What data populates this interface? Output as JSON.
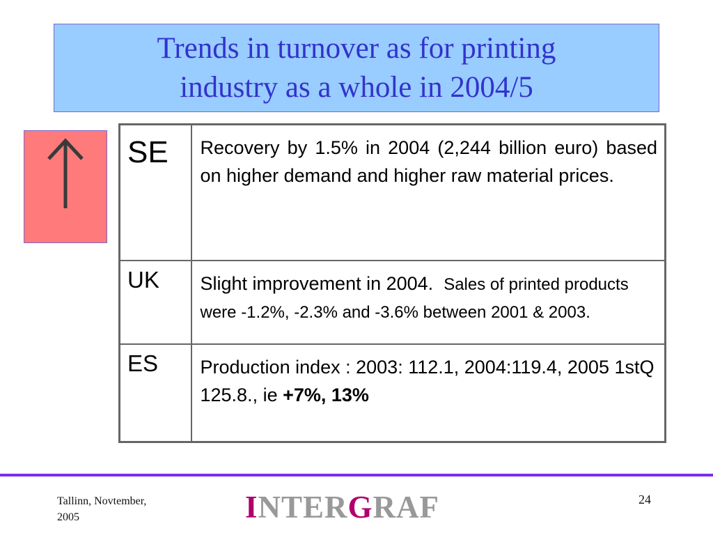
{
  "slide": {
    "title_line1": "Trends in turnover as for printing",
    "title_line2": "industry as a whole in 2004/5",
    "indicator": {
      "icon": "up-arrow-icon",
      "color": "#ff7a7a"
    },
    "table": {
      "rows": [
        {
          "code": "SE",
          "text": "Recovery by 1.5% in 2004 (2,244 billion euro) based on higher demand and higher raw material prices."
        },
        {
          "code": "UK",
          "text_main": "Slight improvement in 2004.",
          "text_detail": "Sales of printed products were -1.2%, -2.3% and -3.6% between 2001 & 2003."
        },
        {
          "code": "ES",
          "text_main": "Production index : 2003: 112.1, 2004:119.4, 2005 1stQ 125.8., ie",
          "text_bold": "+7%, 13%"
        }
      ]
    }
  },
  "footer": {
    "location_line1": "Tallinn, Novtember,",
    "location_line2": "2005",
    "logo": {
      "p1": "I",
      "p2": "NTER",
      "p3": "G",
      "p4": "RAF"
    },
    "page_number": "24"
  },
  "colors": {
    "title_bg": "#99ccff",
    "title_text": "#3333cc",
    "accent_line": "#7b2cf0",
    "logo_accent": "#b0006b",
    "logo_gray": "#999999"
  }
}
